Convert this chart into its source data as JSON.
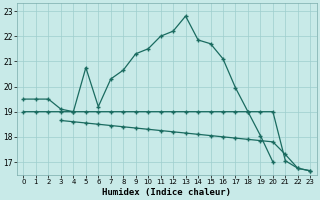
{
  "xlabel": "Humidex (Indice chaleur)",
  "bg_color": "#c8eae8",
  "grid_color": "#9ecece",
  "line_color": "#1a6b60",
  "xlim": [
    -0.5,
    23.5
  ],
  "ylim": [
    16.5,
    23.3
  ],
  "yticks": [
    17,
    18,
    19,
    20,
    21,
    22,
    23
  ],
  "xticks": [
    0,
    1,
    2,
    3,
    4,
    5,
    6,
    7,
    8,
    9,
    10,
    11,
    12,
    13,
    14,
    15,
    16,
    17,
    18,
    19,
    20,
    21,
    22,
    23
  ],
  "line1_x": [
    0,
    1,
    2,
    3,
    4,
    5,
    6,
    7,
    8,
    9,
    10,
    11,
    12,
    13,
    14,
    15,
    16,
    17,
    18,
    19,
    20
  ],
  "line1_y": [
    19.5,
    19.5,
    19.5,
    19.1,
    19.0,
    20.75,
    19.2,
    20.3,
    20.65,
    21.3,
    21.5,
    22.0,
    22.2,
    22.8,
    21.85,
    21.7,
    21.1,
    19.95,
    19.0,
    18.05,
    17.0
  ],
  "line2_x": [
    0,
    1,
    2,
    3,
    4,
    5,
    6,
    7,
    8,
    9,
    10,
    11,
    12,
    13,
    14,
    15,
    16,
    17,
    18,
    19,
    20,
    21,
    22,
    23
  ],
  "line2_y": [
    19.0,
    19.0,
    19.0,
    19.0,
    19.0,
    19.0,
    19.0,
    19.0,
    19.0,
    19.0,
    19.0,
    19.0,
    19.0,
    19.0,
    19.0,
    19.0,
    19.0,
    19.0,
    19.0,
    19.0,
    19.0,
    17.05,
    16.75,
    16.65
  ],
  "line3_x": [
    3,
    4,
    5,
    6,
    7,
    8,
    9,
    10,
    11,
    12,
    13,
    14,
    15,
    16,
    17,
    18,
    19,
    20,
    21,
    22,
    23
  ],
  "line3_y": [
    18.65,
    18.6,
    18.55,
    18.5,
    18.45,
    18.4,
    18.35,
    18.3,
    18.25,
    18.2,
    18.15,
    18.1,
    18.05,
    18.0,
    17.95,
    17.9,
    17.85,
    17.8,
    17.3,
    16.75,
    16.65
  ]
}
